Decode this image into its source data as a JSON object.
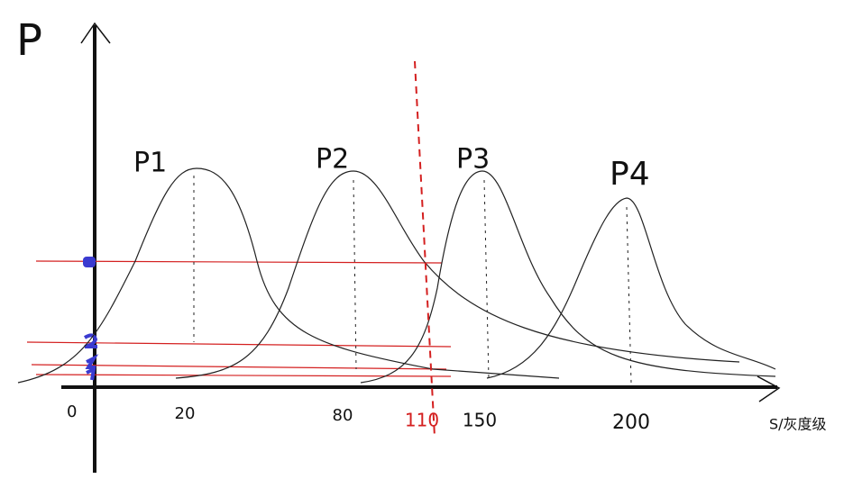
{
  "axes": {
    "y_label": "P",
    "x_label": "S/灰度级",
    "origin": "0"
  },
  "x_ticks": [
    "20",
    "80",
    "150",
    "200"
  ],
  "threshold": "110",
  "curves": [
    {
      "label": "P1"
    },
    {
      "label": "P2"
    },
    {
      "label": "P3"
    },
    {
      "label": "P4"
    }
  ]
}
